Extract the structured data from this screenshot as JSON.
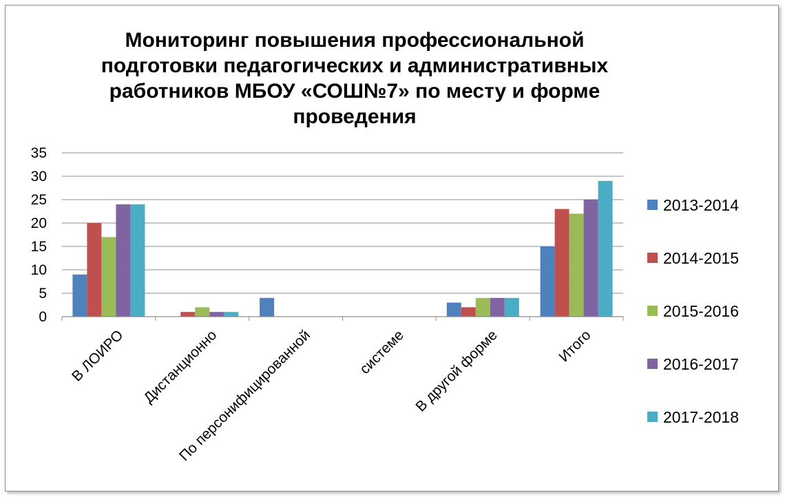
{
  "chart_data": {
    "type": "bar",
    "title_lines": [
      "Мониторинг  повышения профессиональной",
      "подготовки педагогических и административных",
      "работников МБОУ «СОШ№7» по месту и форме",
      "проведения"
    ],
    "categories": [
      "В ЛОИРО",
      "Дистанционно",
      "По персонифицированной",
      "системе",
      "В другой форме",
      "Итого"
    ],
    "series": [
      {
        "name": "2013-2014",
        "color": "#4f81bd",
        "values": [
          9,
          0,
          4,
          0,
          3,
          15
        ]
      },
      {
        "name": "2014-2015",
        "color": "#c0504d",
        "values": [
          20,
          1,
          0,
          0,
          2,
          23
        ]
      },
      {
        "name": "2015-2016",
        "color": "#9bbb59",
        "values": [
          17,
          2,
          0,
          0,
          4,
          22
        ]
      },
      {
        "name": "2016-2017",
        "color": "#8064a2",
        "values": [
          24,
          1,
          0,
          0,
          4,
          25
        ]
      },
      {
        "name": "2017-2018",
        "color": "#4bacc6",
        "values": [
          24,
          1,
          0,
          0,
          4,
          29
        ]
      }
    ],
    "ylim": [
      0,
      35
    ],
    "yticks": [
      0,
      5,
      10,
      15,
      20,
      25,
      30,
      35
    ],
    "grid": true,
    "legend_position": "right"
  }
}
